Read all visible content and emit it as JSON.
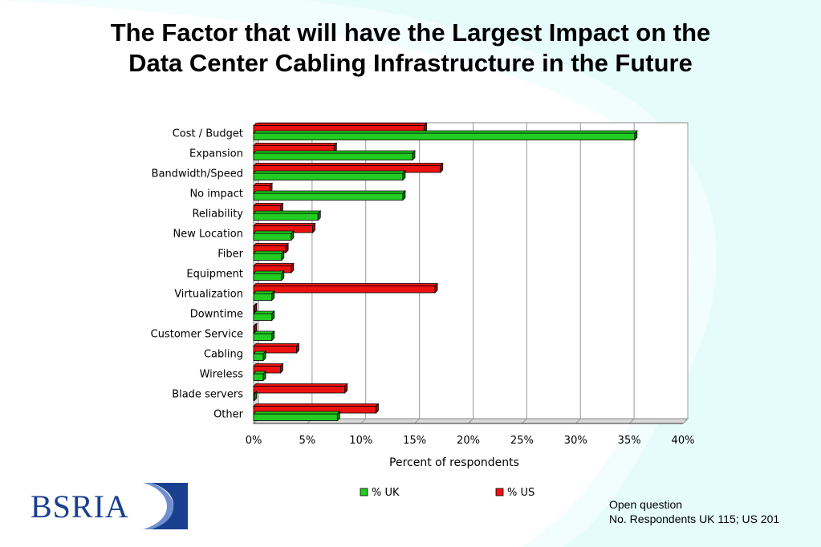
{
  "title_line1": "The Factor that will have the Largest Impact on the",
  "title_line2": "Data Center Cabling Infrastructure in the Future",
  "logo_text": "BSRIA",
  "note_line1": "Open question",
  "note_line2": "No. Respondents UK 115; US 201",
  "colors": {
    "uk": "#22cc22",
    "us": "#ee1111",
    "logo_blue": "#1a3f8f",
    "background_swoosh": "#e6fbfb"
  },
  "chart_data": {
    "type": "bar",
    "orientation": "horizontal",
    "categories": [
      "Cost / Budget",
      "Expansion",
      "Bandwidth/Speed",
      "No impact",
      "Reliability",
      "New Location",
      "Fiber",
      "Equipment",
      "Virtualization",
      "Downtime",
      "Customer Service",
      "Cabling",
      "Wireless",
      "Blade servers",
      "Other"
    ],
    "series": [
      {
        "name": "% UK",
        "values": [
          35.5,
          14.8,
          13.9,
          13.9,
          6.0,
          3.5,
          2.6,
          2.6,
          1.7,
          1.7,
          1.7,
          0.9,
          0.9,
          0,
          7.8
        ]
      },
      {
        "name": "% US",
        "values": [
          15.9,
          7.5,
          17.4,
          1.5,
          2.5,
          5.5,
          3.0,
          3.5,
          16.9,
          0,
          0,
          4.0,
          2.5,
          8.5,
          11.4
        ]
      }
    ],
    "xlabel": "Percent of respondents",
    "xlim": [
      0,
      40
    ],
    "xticks": [
      "0%",
      "5%",
      "10%",
      "15%",
      "20%",
      "25%",
      "30%",
      "35%",
      "40%"
    ],
    "grid": true,
    "legend": "bottom"
  }
}
